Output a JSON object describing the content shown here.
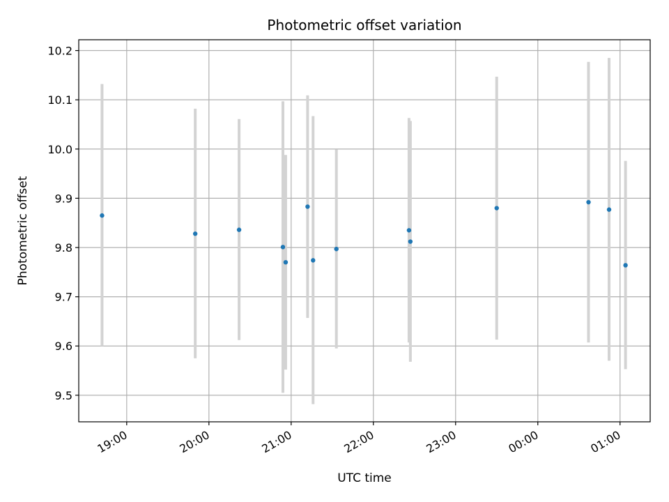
{
  "chart_data": {
    "type": "scatter",
    "title": "Photometric offset variation",
    "xlabel": "UTC time",
    "ylabel": "Photometric offset",
    "xlim": [
      "2021-01-01T18:25",
      "2021-01-02T01:22"
    ],
    "ylim": [
      9.446,
      10.222
    ],
    "x_ticks": [
      {
        "t": "2021-01-01T19:00",
        "label": "19:00"
      },
      {
        "t": "2021-01-01T20:00",
        "label": "20:00"
      },
      {
        "t": "2021-01-01T21:00",
        "label": "21:00"
      },
      {
        "t": "2021-01-01T22:00",
        "label": "22:00"
      },
      {
        "t": "2021-01-01T23:00",
        "label": "23:00"
      },
      {
        "t": "2021-01-02T00:00",
        "label": "00:00"
      },
      {
        "t": "2021-01-02T01:00",
        "label": "01:00"
      }
    ],
    "y_ticks": [
      {
        "v": 9.5,
        "label": "9.5"
      },
      {
        "v": 9.6,
        "label": "9.6"
      },
      {
        "v": 9.7,
        "label": "9.7"
      },
      {
        "v": 9.8,
        "label": "9.8"
      },
      {
        "v": 9.9,
        "label": "9.9"
      },
      {
        "v": 10.0,
        "label": "10.0"
      },
      {
        "v": 10.1,
        "label": "10.1"
      },
      {
        "v": 10.2,
        "label": "10.2"
      }
    ],
    "grid": true,
    "marker_color": "#1f77b4",
    "errorbar_color": "#d3d3d3",
    "points": [
      {
        "t": "2021-01-01T18:42",
        "y": 9.865,
        "lo": 9.6,
        "hi": 10.132
      },
      {
        "t": "2021-01-01T19:50",
        "y": 9.828,
        "lo": 9.575,
        "hi": 10.082
      },
      {
        "t": "2021-01-01T20:22",
        "y": 9.836,
        "lo": 9.612,
        "hi": 10.061
      },
      {
        "t": "2021-01-01T20:54",
        "y": 9.801,
        "lo": 9.505,
        "hi": 10.097
      },
      {
        "t": "2021-01-01T20:56",
        "y": 9.77,
        "lo": 9.552,
        "hi": 9.988
      },
      {
        "t": "2021-01-01T21:12",
        "y": 9.883,
        "lo": 9.657,
        "hi": 10.109
      },
      {
        "t": "2021-01-01T21:16",
        "y": 9.774,
        "lo": 9.482,
        "hi": 10.067
      },
      {
        "t": "2021-01-01T21:33",
        "y": 9.797,
        "lo": 9.595,
        "hi": 9.999
      },
      {
        "t": "2021-01-01T22:26",
        "y": 9.835,
        "lo": 9.607,
        "hi": 10.063
      },
      {
        "t": "2021-01-01T22:27",
        "y": 9.812,
        "lo": 9.568,
        "hi": 10.057
      },
      {
        "t": "2021-01-01T23:30",
        "y": 9.88,
        "lo": 9.613,
        "hi": 10.147
      },
      {
        "t": "2021-01-02T00:37",
        "y": 9.892,
        "lo": 9.607,
        "hi": 10.177
      },
      {
        "t": "2021-01-02T00:52",
        "y": 9.877,
        "lo": 9.57,
        "hi": 10.185
      },
      {
        "t": "2021-01-02T01:04",
        "y": 9.764,
        "lo": 9.553,
        "hi": 9.976
      }
    ]
  }
}
